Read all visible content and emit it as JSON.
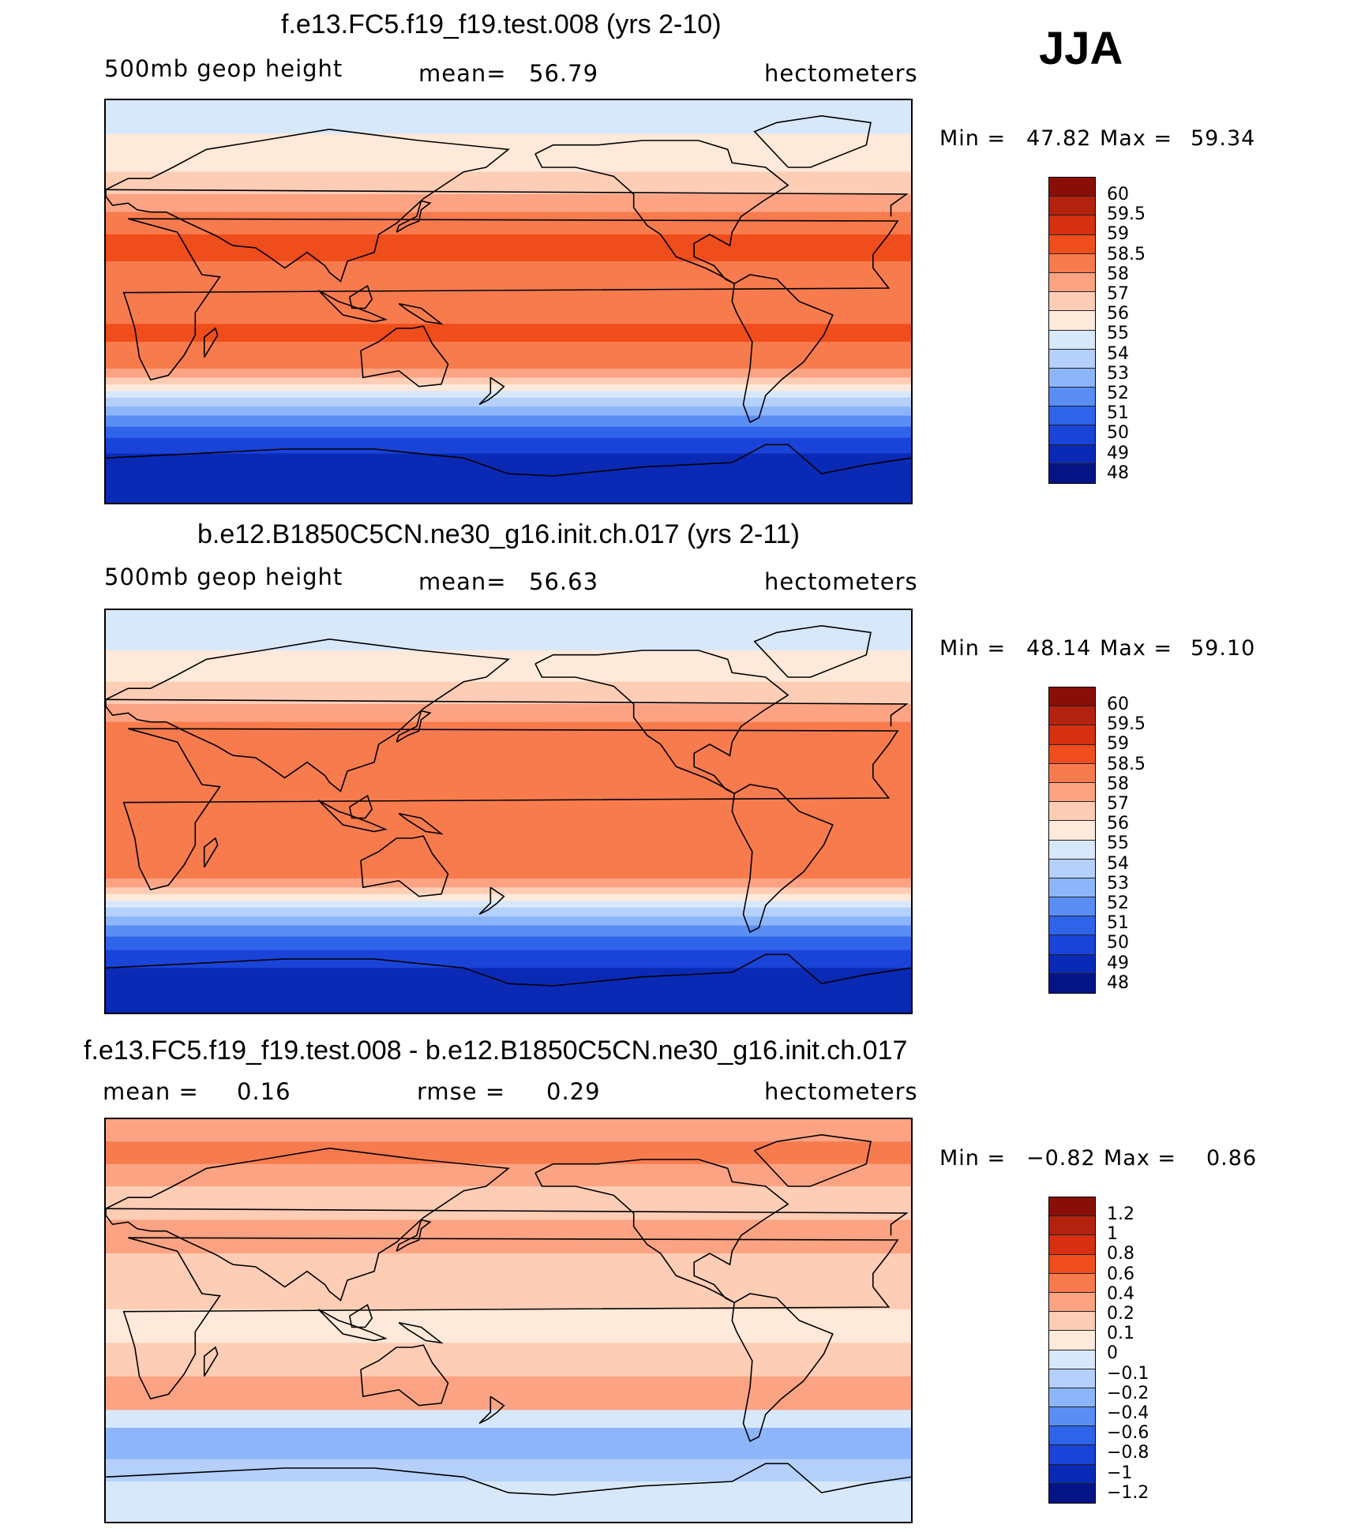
{
  "season": "JJA",
  "chart_data": [
    {
      "type": "heatmap",
      "title": "f.e13.FC5.f19_f19.test.008 (yrs 2-10)",
      "variable": "500mb  geop  height",
      "stat_label": "mean=",
      "stat_value": "56.79",
      "units": "hectometers",
      "min_label": "Min =",
      "min_value": "47.82",
      "max_label": "Max =",
      "max_value": "59.34",
      "colorbar_levels": [
        "60",
        "59.5",
        "59",
        "58.5",
        "58",
        "57",
        "56",
        "55",
        "54",
        "53",
        "52",
        "51",
        "50",
        "49",
        "48"
      ],
      "colorbar_colors": [
        "#8a0e08",
        "#b3220e",
        "#d63010",
        "#f04d1d",
        "#f77b4d",
        "#fba383",
        "#fdcdb5",
        "#fee9da",
        "#d8e8fb",
        "#b4d0fb",
        "#8db5fa",
        "#5a8ef4",
        "#2e63ea",
        "#1a43d8",
        "#0a2ab5",
        "#061585"
      ],
      "bands": [
        {
          "lat": 90,
          "color": "#d8e8fb"
        },
        {
          "lat": 75,
          "color": "#fee9da"
        },
        {
          "lat": 58,
          "color": "#fdcdb5"
        },
        {
          "lat": 48,
          "color": "#fba383"
        },
        {
          "lat": 40,
          "color": "#f77b4d"
        },
        {
          "lat": 30,
          "color": "#f04d1d"
        },
        {
          "lat": 18,
          "color": "#f77b4d"
        },
        {
          "lat": -10,
          "color": "#f04d1d"
        },
        {
          "lat": -18,
          "color": "#f77b4d"
        },
        {
          "lat": -30,
          "color": "#fba383"
        },
        {
          "lat": -34,
          "color": "#fdcdb5"
        },
        {
          "lat": -37,
          "color": "#fee9da"
        },
        {
          "lat": -40,
          "color": "#d8e8fb"
        },
        {
          "lat": -43,
          "color": "#b4d0fb"
        },
        {
          "lat": -47,
          "color": "#8db5fa"
        },
        {
          "lat": -51,
          "color": "#5a8ef4"
        },
        {
          "lat": -56,
          "color": "#2e63ea"
        },
        {
          "lat": -61,
          "color": "#1a43d8"
        },
        {
          "lat": -68,
          "color": "#0a2ab5"
        },
        {
          "lat": -90,
          "color": "#0a2ab5"
        }
      ]
    },
    {
      "type": "heatmap",
      "title": "b.e12.B1850C5CN.ne30_g16.init.ch.017 (yrs 2-11)",
      "variable": "500mb  geop  height",
      "stat_label": "mean=",
      "stat_value": "56.63",
      "units": "hectometers",
      "min_label": "Min =",
      "min_value": "48.14",
      "max_label": "Max =",
      "max_value": "59.10",
      "colorbar_levels": [
        "60",
        "59.5",
        "59",
        "58.5",
        "58",
        "57",
        "56",
        "55",
        "54",
        "53",
        "52",
        "51",
        "50",
        "49",
        "48"
      ],
      "colorbar_colors": [
        "#8a0e08",
        "#b3220e",
        "#d63010",
        "#f04d1d",
        "#f77b4d",
        "#fba383",
        "#fdcdb5",
        "#fee9da",
        "#d8e8fb",
        "#b4d0fb",
        "#8db5fa",
        "#5a8ef4",
        "#2e63ea",
        "#1a43d8",
        "#0a2ab5",
        "#061585"
      ],
      "bands": [
        {
          "lat": 90,
          "color": "#d8e8fb"
        },
        {
          "lat": 72,
          "color": "#fee9da"
        },
        {
          "lat": 58,
          "color": "#fdcdb5"
        },
        {
          "lat": 48,
          "color": "#fba383"
        },
        {
          "lat": 40,
          "color": "#f77b4d"
        },
        {
          "lat": -30,
          "color": "#fba383"
        },
        {
          "lat": -34,
          "color": "#fdcdb5"
        },
        {
          "lat": -37,
          "color": "#fee9da"
        },
        {
          "lat": -40,
          "color": "#d8e8fb"
        },
        {
          "lat": -43,
          "color": "#b4d0fb"
        },
        {
          "lat": -47,
          "color": "#8db5fa"
        },
        {
          "lat": -51,
          "color": "#5a8ef4"
        },
        {
          "lat": -56,
          "color": "#2e63ea"
        },
        {
          "lat": -62,
          "color": "#1a43d8"
        },
        {
          "lat": -70,
          "color": "#0a2ab5"
        },
        {
          "lat": -90,
          "color": "#0a2ab5"
        }
      ]
    },
    {
      "type": "heatmap",
      "title": "f.e13.FC5.f19_f19.test.008 - b.e12.B1850C5CN.ne30_g16.init.ch.017",
      "variable": "",
      "stat_label": "mean =",
      "stat_value": "0.16",
      "stat2_label": "rmse =",
      "stat2_value": "0.29",
      "units": "hectometers",
      "min_label": "Min =",
      "min_value": "−0.82",
      "max_label": "Max =",
      "max_value": "0.86",
      "colorbar_levels": [
        "1.2",
        "1",
        "0.8",
        "0.6",
        "0.4",
        "0.2",
        "0.1",
        "0",
        "−0.1",
        "−0.2",
        "−0.4",
        "−0.6",
        "−0.8",
        "−1",
        "−1.2"
      ],
      "colorbar_colors": [
        "#8a0e08",
        "#b3220e",
        "#d63010",
        "#f04d1d",
        "#f77b4d",
        "#fba383",
        "#fdcdb5",
        "#fee9da",
        "#d8e8fb",
        "#b4d0fb",
        "#8db5fa",
        "#5a8ef4",
        "#2e63ea",
        "#1a43d8",
        "#0a2ab5",
        "#061585"
      ],
      "bands": [
        {
          "lat": 90,
          "color": "#fba383"
        },
        {
          "lat": 80,
          "color": "#f77b4d"
        },
        {
          "lat": 70,
          "color": "#fba383"
        },
        {
          "lat": 60,
          "color": "#fdcdb5"
        },
        {
          "lat": 45,
          "color": "#fba383"
        },
        {
          "lat": 30,
          "color": "#fdcdb5"
        },
        {
          "lat": 5,
          "color": "#fee9da"
        },
        {
          "lat": -10,
          "color": "#fdcdb5"
        },
        {
          "lat": -25,
          "color": "#fba383"
        },
        {
          "lat": -40,
          "color": "#d8e8fb"
        },
        {
          "lat": -48,
          "color": "#8db5fa"
        },
        {
          "lat": -62,
          "color": "#b4d0fb"
        },
        {
          "lat": -72,
          "color": "#d8e8fb"
        },
        {
          "lat": -90,
          "color": "#fee9da"
        }
      ]
    }
  ]
}
